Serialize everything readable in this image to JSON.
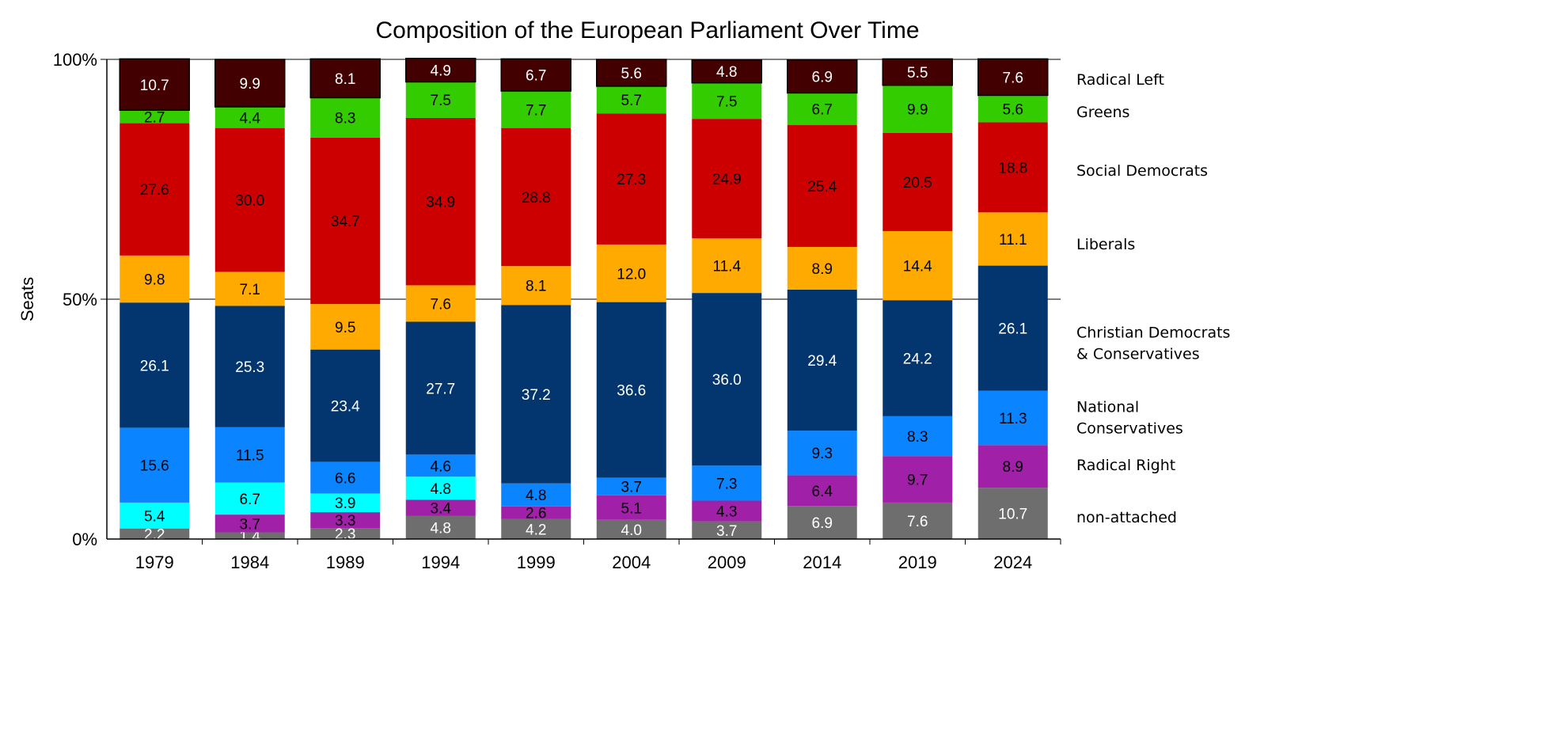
{
  "chart_data": {
    "type": "bar",
    "stacked": true,
    "title": "Composition of the European Parliament Over Time",
    "xlabel": "",
    "ylabel": "Seats",
    "ylim": [
      0,
      100
    ],
    "yticks": [
      "0%",
      "50%",
      "100%"
    ],
    "grid": "horizontal at 50% and 100%",
    "legend": "right, aligned to last bar",
    "categories": [
      "1979",
      "1984",
      "1989",
      "1994",
      "1999",
      "2004",
      "2009",
      "2014",
      "2019",
      "2024"
    ],
    "series": [
      {
        "name": "non-attached",
        "color": "#6e6e6e",
        "label_color": "#ffffff",
        "values": [
          2.2,
          1.4,
          2.3,
          4.8,
          4.2,
          4.0,
          3.7,
          6.9,
          7.6,
          10.7
        ]
      },
      {
        "name": "Radical Right",
        "color": "#a020a8",
        "label_color": "#000000",
        "values": [
          0,
          3.7,
          3.3,
          3.4,
          2.6,
          5.1,
          4.3,
          6.4,
          9.7,
          8.9
        ]
      },
      {
        "name": "",
        "color": "#00ffff",
        "label_color": "#000000",
        "values": [
          5.4,
          6.7,
          3.9,
          4.8,
          0,
          0,
          0,
          0,
          0,
          0
        ]
      },
      {
        "name": "National Conservatives",
        "color": "#0a84ff",
        "label_color": "#000000",
        "values": [
          15.6,
          11.5,
          6.6,
          4.6,
          4.8,
          3.7,
          7.3,
          9.3,
          8.3,
          11.3
        ]
      },
      {
        "name": "Christian Democrats & Conservatives",
        "color": "#03366e",
        "label_color": "#ffffff",
        "values": [
          26.1,
          25.3,
          23.4,
          27.7,
          37.2,
          36.6,
          36.0,
          29.4,
          24.2,
          26.1
        ]
      },
      {
        "name": "Liberals",
        "color": "#ffaa00",
        "label_color": "#000000",
        "values": [
          9.8,
          7.1,
          9.5,
          7.6,
          8.1,
          12.0,
          11.4,
          8.9,
          14.4,
          11.1
        ]
      },
      {
        "name": "Social Democrats",
        "color": "#cc0000",
        "label_color": "#000000",
        "values": [
          27.6,
          30.0,
          34.7,
          34.9,
          28.8,
          27.3,
          24.9,
          25.4,
          20.5,
          18.8
        ]
      },
      {
        "name": "Greens",
        "color": "#33cc00",
        "label_color": "#000000",
        "values": [
          2.7,
          4.4,
          8.3,
          7.5,
          7.7,
          5.7,
          7.5,
          6.7,
          9.9,
          5.6
        ]
      },
      {
        "name": "Radical Left",
        "color": "#420000",
        "label_color": "#ffffff",
        "values": [
          10.7,
          9.9,
          8.1,
          4.9,
          6.7,
          5.6,
          4.8,
          6.9,
          5.5,
          7.6
        ]
      }
    ],
    "legend_lines": {
      "Christian Democrats & Conservatives": [
        "Christian Democrats",
        "& Conservatives"
      ],
      "National Conservatives": [
        "National",
        "Conservatives"
      ]
    }
  }
}
